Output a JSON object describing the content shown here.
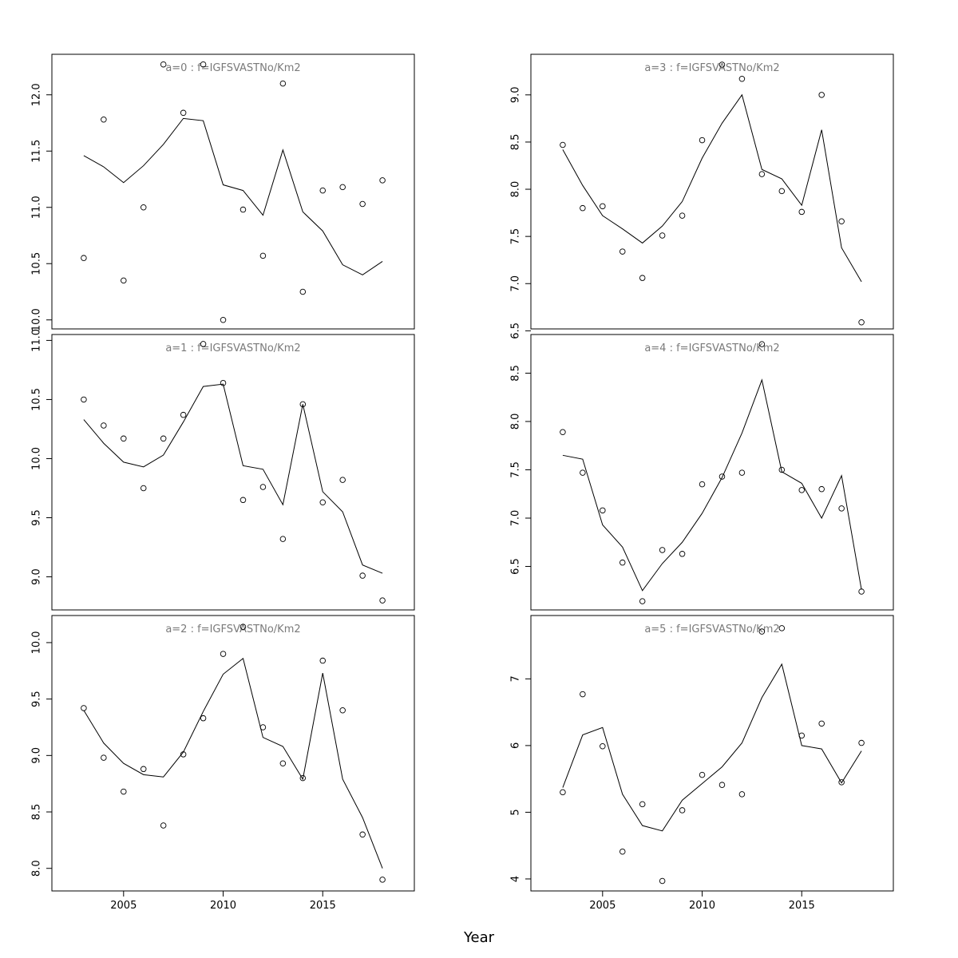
{
  "figure": {
    "xlabel": "Year"
  },
  "chart_data": [
    {
      "type": "scatter",
      "title": "a=0  :  f=IGFSVASTNo/Km2",
      "x": [
        2003,
        2004,
        2005,
        2006,
        2007,
        2008,
        2009,
        2010,
        2011,
        2012,
        2013,
        2014,
        2015,
        2016,
        2017,
        2018
      ],
      "series": [
        {
          "style": "points",
          "values": [
            10.55,
            11.78,
            10.35,
            11.0,
            12.27,
            11.84,
            12.27,
            10.0,
            10.98,
            10.57,
            12.1,
            10.25,
            11.15,
            11.18,
            11.03,
            11.24
          ]
        },
        {
          "style": "line",
          "values": [
            11.46,
            11.36,
            11.22,
            11.37,
            11.56,
            11.79,
            11.77,
            11.2,
            11.15,
            10.93,
            11.51,
            10.96,
            10.79,
            10.49,
            10.4,
            10.52
          ]
        }
      ],
      "xlim": [
        2001.4,
        2019.6
      ],
      "ylim": [
        9.92,
        12.36
      ],
      "yticks": [
        10.0,
        10.5,
        11.0,
        11.5,
        12.0
      ],
      "ytick_labels": [
        "10.0",
        "10.5",
        "11.0",
        "11.5",
        "12.0"
      ],
      "xticks": [],
      "xtick_labels": []
    },
    {
      "type": "scatter",
      "title": "a=1  :  f=IGFSVASTNo/Km2",
      "x": [
        2003,
        2004,
        2005,
        2006,
        2007,
        2008,
        2009,
        2010,
        2011,
        2012,
        2013,
        2014,
        2015,
        2016,
        2017,
        2018
      ],
      "series": [
        {
          "style": "points",
          "values": [
            10.5,
            10.28,
            10.17,
            9.75,
            10.17,
            10.37,
            10.97,
            10.64,
            9.65,
            9.76,
            9.32,
            10.46,
            9.63,
            9.82,
            9.01,
            8.8
          ]
        },
        {
          "style": "line",
          "values": [
            10.33,
            10.13,
            9.97,
            9.93,
            10.03,
            10.31,
            10.61,
            10.63,
            9.94,
            9.91,
            9.61,
            10.46,
            9.72,
            9.55,
            9.1,
            9.03
          ]
        }
      ],
      "xlim": [
        2001.4,
        2019.6
      ],
      "ylim": [
        8.72,
        11.05
      ],
      "yticks": [
        9.0,
        9.5,
        10.0,
        10.5,
        11.0
      ],
      "ytick_labels": [
        "9.0",
        "9.5",
        "10.0",
        "10.5",
        "11.0"
      ],
      "xticks": [],
      "xtick_labels": []
    },
    {
      "type": "scatter",
      "title": "a=2  :  f=IGFSVASTNo/Km2",
      "x": [
        2003,
        2004,
        2005,
        2006,
        2007,
        2008,
        2009,
        2010,
        2011,
        2012,
        2013,
        2014,
        2015,
        2016,
        2017,
        2018
      ],
      "series": [
        {
          "style": "points",
          "values": [
            9.42,
            8.98,
            8.68,
            8.88,
            8.38,
            9.01,
            9.33,
            9.9,
            10.14,
            9.25,
            8.93,
            8.8,
            9.84,
            9.4,
            8.3,
            7.9
          ]
        },
        {
          "style": "line",
          "values": [
            9.4,
            9.11,
            8.93,
            8.83,
            8.81,
            9.03,
            9.39,
            9.72,
            9.86,
            9.16,
            9.08,
            8.79,
            9.73,
            8.79,
            8.45,
            8.0
          ]
        }
      ],
      "xlim": [
        2001.4,
        2019.6
      ],
      "ylim": [
        7.8,
        10.24
      ],
      "yticks": [
        8.0,
        8.5,
        9.0,
        9.5,
        10.0
      ],
      "ytick_labels": [
        "8.0",
        "8.5",
        "9.0",
        "9.5",
        "10.0"
      ],
      "xticks": [
        2005,
        2010,
        2015
      ],
      "xtick_labels": [
        "2005",
        "2010",
        "2015"
      ]
    },
    {
      "type": "scatter",
      "title": "a=3  :  f=IGFSVASTNo/Km2",
      "x": [
        2003,
        2004,
        2005,
        2006,
        2007,
        2008,
        2009,
        2010,
        2011,
        2012,
        2013,
        2014,
        2015,
        2016,
        2017,
        2018
      ],
      "series": [
        {
          "style": "points",
          "values": [
            8.47,
            7.8,
            7.82,
            7.34,
            7.06,
            7.51,
            7.72,
            8.52,
            9.32,
            9.17,
            8.16,
            7.98,
            7.76,
            9.0,
            7.66,
            6.59
          ]
        },
        {
          "style": "line",
          "values": [
            8.42,
            8.04,
            7.72,
            7.58,
            7.43,
            7.61,
            7.87,
            8.33,
            8.7,
            9.0,
            8.21,
            8.11,
            7.83,
            8.63,
            7.38,
            7.02
          ]
        }
      ],
      "xlim": [
        2001.4,
        2019.6
      ],
      "ylim": [
        6.52,
        9.43
      ],
      "yticks": [
        6.5,
        7.0,
        7.5,
        8.0,
        8.5,
        9.0
      ],
      "ytick_labels": [
        "6.5",
        "7.0",
        "7.5",
        "8.0",
        "8.5",
        "9.0"
      ],
      "xticks": [],
      "xtick_labels": []
    },
    {
      "type": "scatter",
      "title": "a=4  :  f=IGFSVASTNo/Km2",
      "x": [
        2003,
        2004,
        2005,
        2006,
        2007,
        2008,
        2009,
        2010,
        2011,
        2012,
        2013,
        2014,
        2015,
        2016,
        2017,
        2018
      ],
      "series": [
        {
          "style": "points",
          "values": [
            7.89,
            7.47,
            7.08,
            6.54,
            6.14,
            6.67,
            6.63,
            7.35,
            7.43,
            7.47,
            8.8,
            7.5,
            7.29,
            7.3,
            7.1,
            6.24
          ]
        },
        {
          "style": "line",
          "values": [
            7.65,
            7.61,
            6.93,
            6.7,
            6.25,
            6.53,
            6.75,
            7.05,
            7.42,
            7.88,
            8.43,
            7.48,
            7.36,
            7.0,
            7.44,
            6.26
          ]
        }
      ],
      "xlim": [
        2001.4,
        2019.6
      ],
      "ylim": [
        6.05,
        8.9
      ],
      "yticks": [
        6.5,
        7.0,
        7.5,
        8.0,
        8.5
      ],
      "ytick_labels": [
        "6.5",
        "7.0",
        "7.5",
        "8.0",
        "8.5"
      ],
      "xticks": [],
      "xtick_labels": []
    },
    {
      "type": "scatter",
      "title": "a=5  :  f=IGFSVASTNo/Km2",
      "x": [
        2003,
        2004,
        2005,
        2006,
        2007,
        2008,
        2009,
        2010,
        2011,
        2012,
        2013,
        2014,
        2015,
        2016,
        2017,
        2018
      ],
      "series": [
        {
          "style": "points",
          "values": [
            5.3,
            6.77,
            5.99,
            4.41,
            5.12,
            3.97,
            5.03,
            5.56,
            5.41,
            5.27,
            7.71,
            7.76,
            6.15,
            6.33,
            5.45,
            6.04
          ]
        },
        {
          "style": "line",
          "values": [
            5.37,
            6.16,
            6.27,
            5.27,
            4.8,
            4.72,
            5.18,
            5.43,
            5.68,
            6.04,
            6.72,
            7.22,
            6.0,
            5.95,
            5.44,
            5.92
          ]
        }
      ],
      "xlim": [
        2001.4,
        2019.6
      ],
      "ylim": [
        3.82,
        7.95
      ],
      "yticks": [
        4,
        5,
        6,
        7
      ],
      "ytick_labels": [
        "4",
        "5",
        "6",
        "7"
      ],
      "xticks": [
        2005,
        2010,
        2015
      ],
      "xtick_labels": [
        "2005",
        "2010",
        "2015"
      ]
    }
  ]
}
